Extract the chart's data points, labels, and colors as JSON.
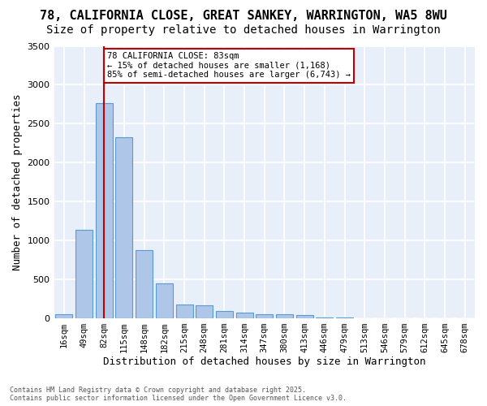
{
  "title_line1": "78, CALIFORNIA CLOSE, GREAT SANKEY, WARRINGTON, WA5 8WU",
  "title_line2": "Size of property relative to detached houses in Warrington",
  "xlabel": "Distribution of detached houses by size in Warrington",
  "ylabel": "Number of detached properties",
  "categories": [
    "16sqm",
    "49sqm",
    "82sqm",
    "115sqm",
    "148sqm",
    "182sqm",
    "215sqm",
    "248sqm",
    "281sqm",
    "314sqm",
    "347sqm",
    "380sqm",
    "413sqm",
    "446sqm",
    "479sqm",
    "513sqm",
    "546sqm",
    "579sqm",
    "612sqm",
    "645sqm",
    "678sqm"
  ],
  "values": [
    50,
    1130,
    2760,
    2330,
    870,
    440,
    170,
    160,
    90,
    65,
    45,
    45,
    35,
    10,
    10,
    0,
    0,
    0,
    0,
    0,
    0
  ],
  "bar_color": "#aec6e8",
  "bar_edge_color": "#5b9bd5",
  "background_color": "#e8eff9",
  "grid_color": "#ffffff",
  "vline_index": 2,
  "vline_color": "#c00000",
  "annotation_text": "78 CALIFORNIA CLOSE: 83sqm\n← 15% of detached houses are smaller (1,168)\n85% of semi-detached houses are larger (6,743) →",
  "annotation_box_facecolor": "#ffffff",
  "annotation_box_edgecolor": "#c00000",
  "footer_line1": "Contains HM Land Registry data © Crown copyright and database right 2025.",
  "footer_line2": "Contains public sector information licensed under the Open Government Licence v3.0.",
  "ylim": [
    0,
    3500
  ],
  "title_fontsize": 11,
  "subtitle_fontsize": 10,
  "tick_fontsize": 7.5,
  "ylabel_fontsize": 9,
  "xlabel_fontsize": 9
}
